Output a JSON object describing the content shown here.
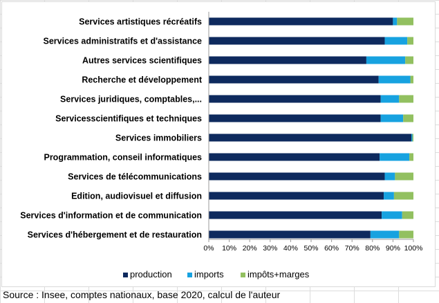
{
  "chart_data": {
    "type": "bar",
    "orientation": "horizontal",
    "stacked": "percent",
    "title": "",
    "xlabel": "",
    "ylabel": "",
    "xlim": [
      0,
      100
    ],
    "x_ticks": [
      "0%",
      "10%",
      "20%",
      "30%",
      "40%",
      "50%",
      "60%",
      "70%",
      "80%",
      "90%",
      "100%"
    ],
    "grid": false,
    "legend_position": "bottom",
    "categories": [
      "Services artistiques récréatifs",
      "Services administratifs et d'assistance",
      "Autres services scientifiques",
      "Recherche et développement",
      "Services juridiques, comptables,...",
      "Servicesscientifiques et techniques",
      "Services immobiliers",
      "Programmation, conseil informatiques",
      "Services de télécommunications",
      "Edition, audiovisuel et diffusion",
      "Services d'information et de communication",
      "Services d'hébergement et de restauration"
    ],
    "series": [
      {
        "name": "production",
        "color": "#0e2a5e",
        "values": [
          90,
          86,
          77,
          83,
          84,
          84,
          99,
          83.5,
          86,
          85.5,
          84.5,
          79
        ]
      },
      {
        "name": "imports",
        "color": "#17a2e0",
        "values": [
          2,
          11,
          19,
          15.5,
          9,
          11,
          0.5,
          14.5,
          5,
          5,
          10,
          14
        ]
      },
      {
        "name": "impôts+marges",
        "color": "#92c060",
        "values": [
          8,
          3,
          4,
          1.5,
          7,
          5,
          0.5,
          2,
          9,
          9.5,
          5.5,
          7
        ]
      }
    ]
  },
  "source": "Source : Insee, comptes nationaux, base 2020, calcul de l'auteur"
}
